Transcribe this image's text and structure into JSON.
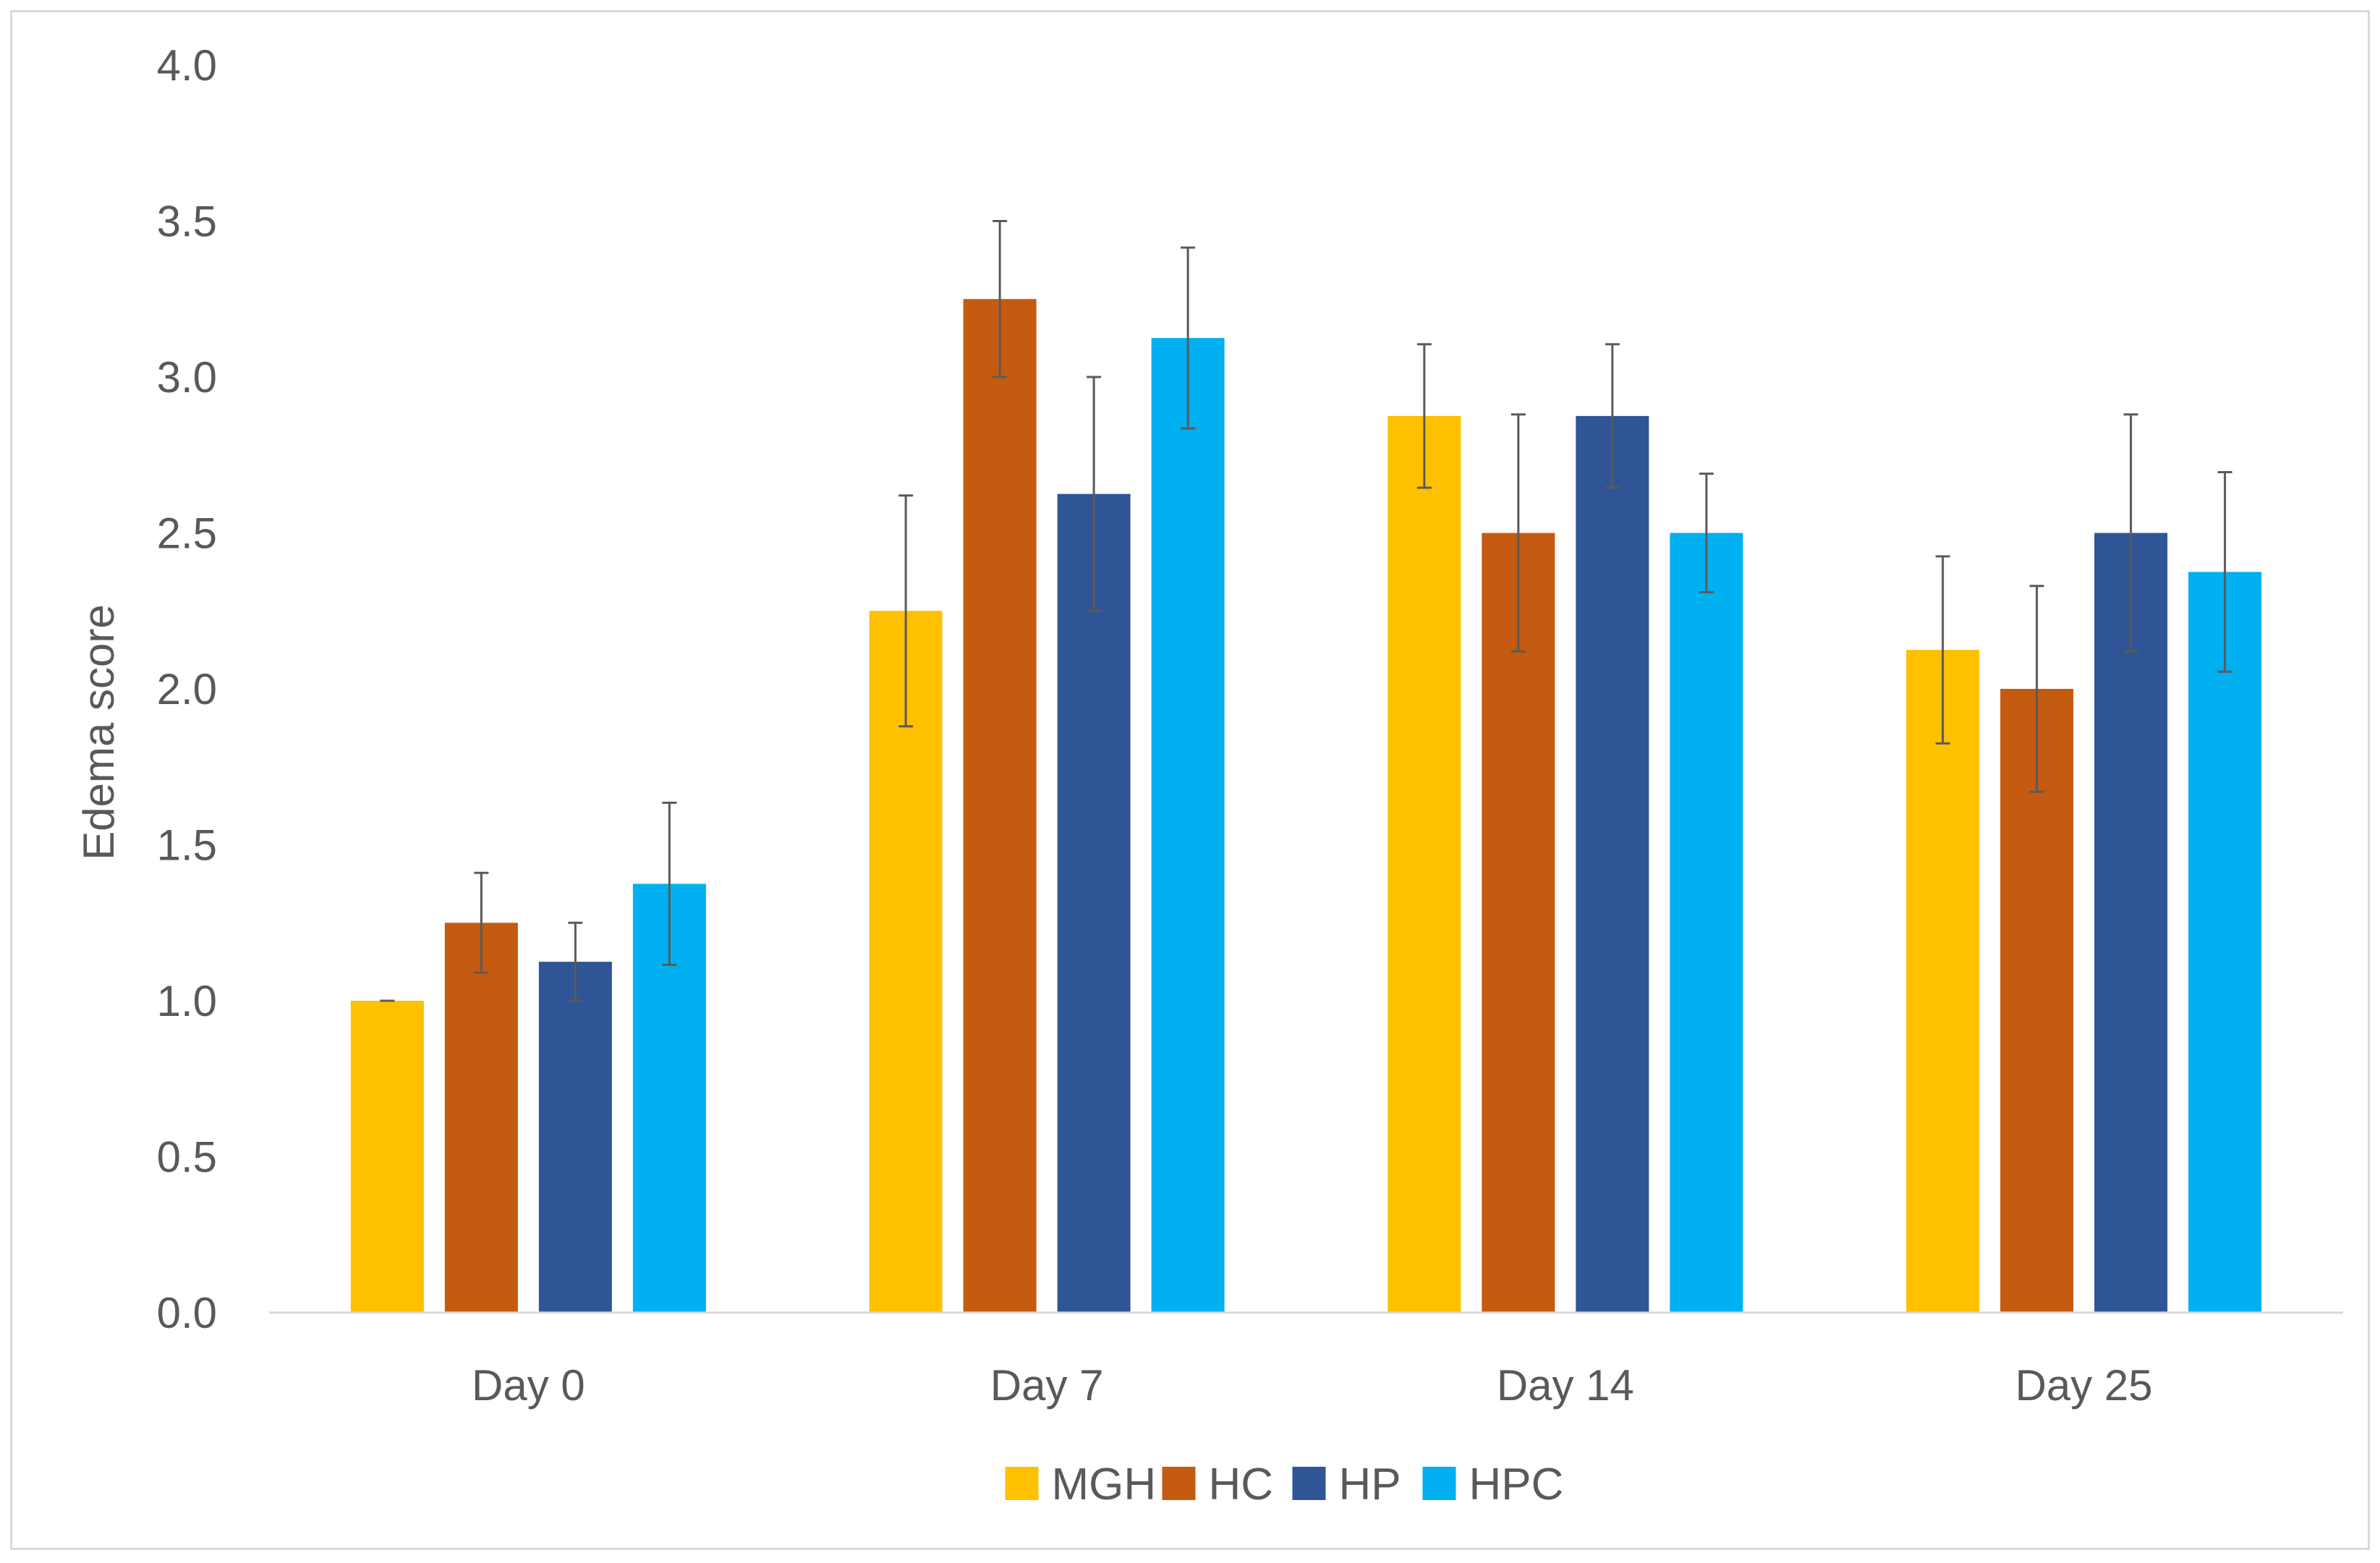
{
  "chart_data": {
    "type": "bar",
    "title": "",
    "xlabel": "",
    "ylabel": "Edema score",
    "ylim": [
      0,
      4.0
    ],
    "y_ticks": [
      "0.0",
      "0.5",
      "1.0",
      "1.5",
      "2.0",
      "2.5",
      "3.0",
      "3.5",
      "4.0"
    ],
    "grid": false,
    "legend_position": "bottom",
    "categories": [
      "Day 0",
      "Day 7",
      "Day 14",
      "Day 25"
    ],
    "series": [
      {
        "name": "MGH",
        "color": "#FFC000",
        "values": [
          1.0,
          2.25,
          2.875,
          2.125
        ],
        "errors": [
          0.0,
          0.37,
          0.23,
          0.3
        ]
      },
      {
        "name": "HC",
        "color": "#C55A11",
        "values": [
          1.25,
          3.25,
          2.5,
          2.0
        ],
        "errors": [
          0.16,
          0.25,
          0.38,
          0.33
        ]
      },
      {
        "name": "HP",
        "color": "#2F5597",
        "values": [
          1.125,
          2.625,
          2.875,
          2.5
        ],
        "errors": [
          0.125,
          0.375,
          0.23,
          0.38
        ]
      },
      {
        "name": "HPC",
        "color": "#00B0F0",
        "values": [
          1.375,
          3.125,
          2.5,
          2.375
        ],
        "errors": [
          0.26,
          0.29,
          0.19,
          0.32
        ]
      }
    ]
  }
}
